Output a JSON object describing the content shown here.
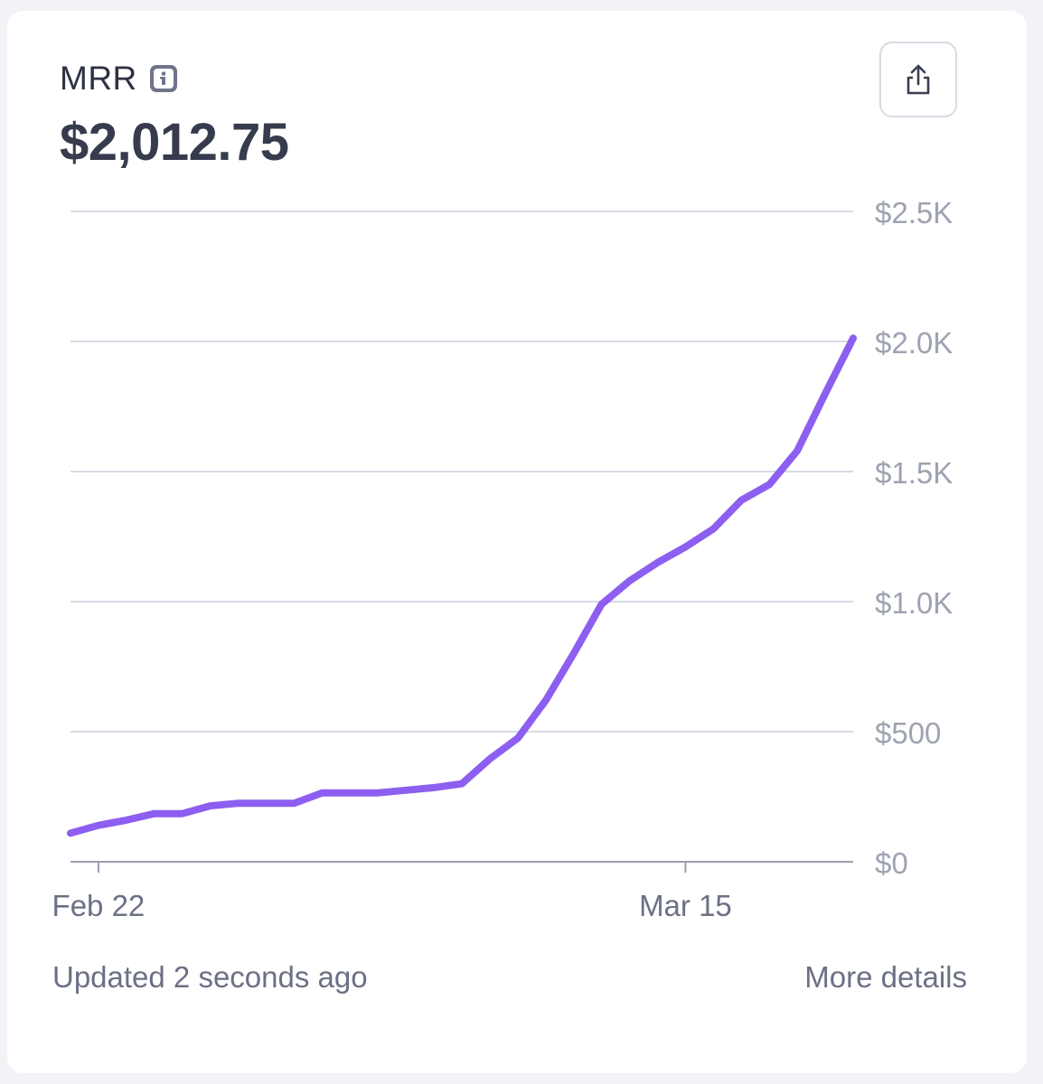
{
  "metric": {
    "label": "MRR",
    "value": "$2,012.75"
  },
  "icons": {
    "info": "info-icon",
    "share": "share-icon"
  },
  "footer": {
    "updated": "Updated 2 seconds ago",
    "more_details": "More details"
  },
  "colors": {
    "line": "#8d5ff0",
    "grid": "#d7dbe4",
    "axis": "#9a9fae",
    "tick_text": "#9ea3b2"
  },
  "chart_data": {
    "type": "line",
    "x_ticks": [
      {
        "label": "Feb 22",
        "x": "Feb 22"
      },
      {
        "label": "Mar 15",
        "x": "Mar 15"
      }
    ],
    "y_ticks": [
      {
        "label": "$0",
        "value": 0
      },
      {
        "label": "$500",
        "value": 500
      },
      {
        "label": "$1.0K",
        "value": 1000
      },
      {
        "label": "$1.5K",
        "value": 1500
      },
      {
        "label": "$2.0K",
        "value": 2000
      },
      {
        "label": "$2.5K",
        "value": 2500
      }
    ],
    "ylim": [
      0,
      2500
    ],
    "x": [
      "Feb 21",
      "Feb 22",
      "Feb 23",
      "Feb 24",
      "Feb 25",
      "Feb 26",
      "Feb 27",
      "Feb 28",
      "Mar 1",
      "Mar 2",
      "Mar 3",
      "Mar 4",
      "Mar 5",
      "Mar 6",
      "Mar 7",
      "Mar 8",
      "Mar 9",
      "Mar 10",
      "Mar 11",
      "Mar 12",
      "Mar 13",
      "Mar 14",
      "Mar 15",
      "Mar 16",
      "Mar 17",
      "Mar 18",
      "Mar 19",
      "Mar 20",
      "Mar 21"
    ],
    "series": [
      {
        "values": [
          110,
          140,
          160,
          185,
          185,
          215,
          225,
          225,
          225,
          265,
          265,
          265,
          275,
          285,
          300,
          395,
          475,
          620,
          800,
          990,
          1080,
          1150,
          1210,
          1280,
          1390,
          1450,
          1580,
          1800,
          2012.75
        ]
      }
    ],
    "grid": true,
    "y_axis_position": "right"
  }
}
